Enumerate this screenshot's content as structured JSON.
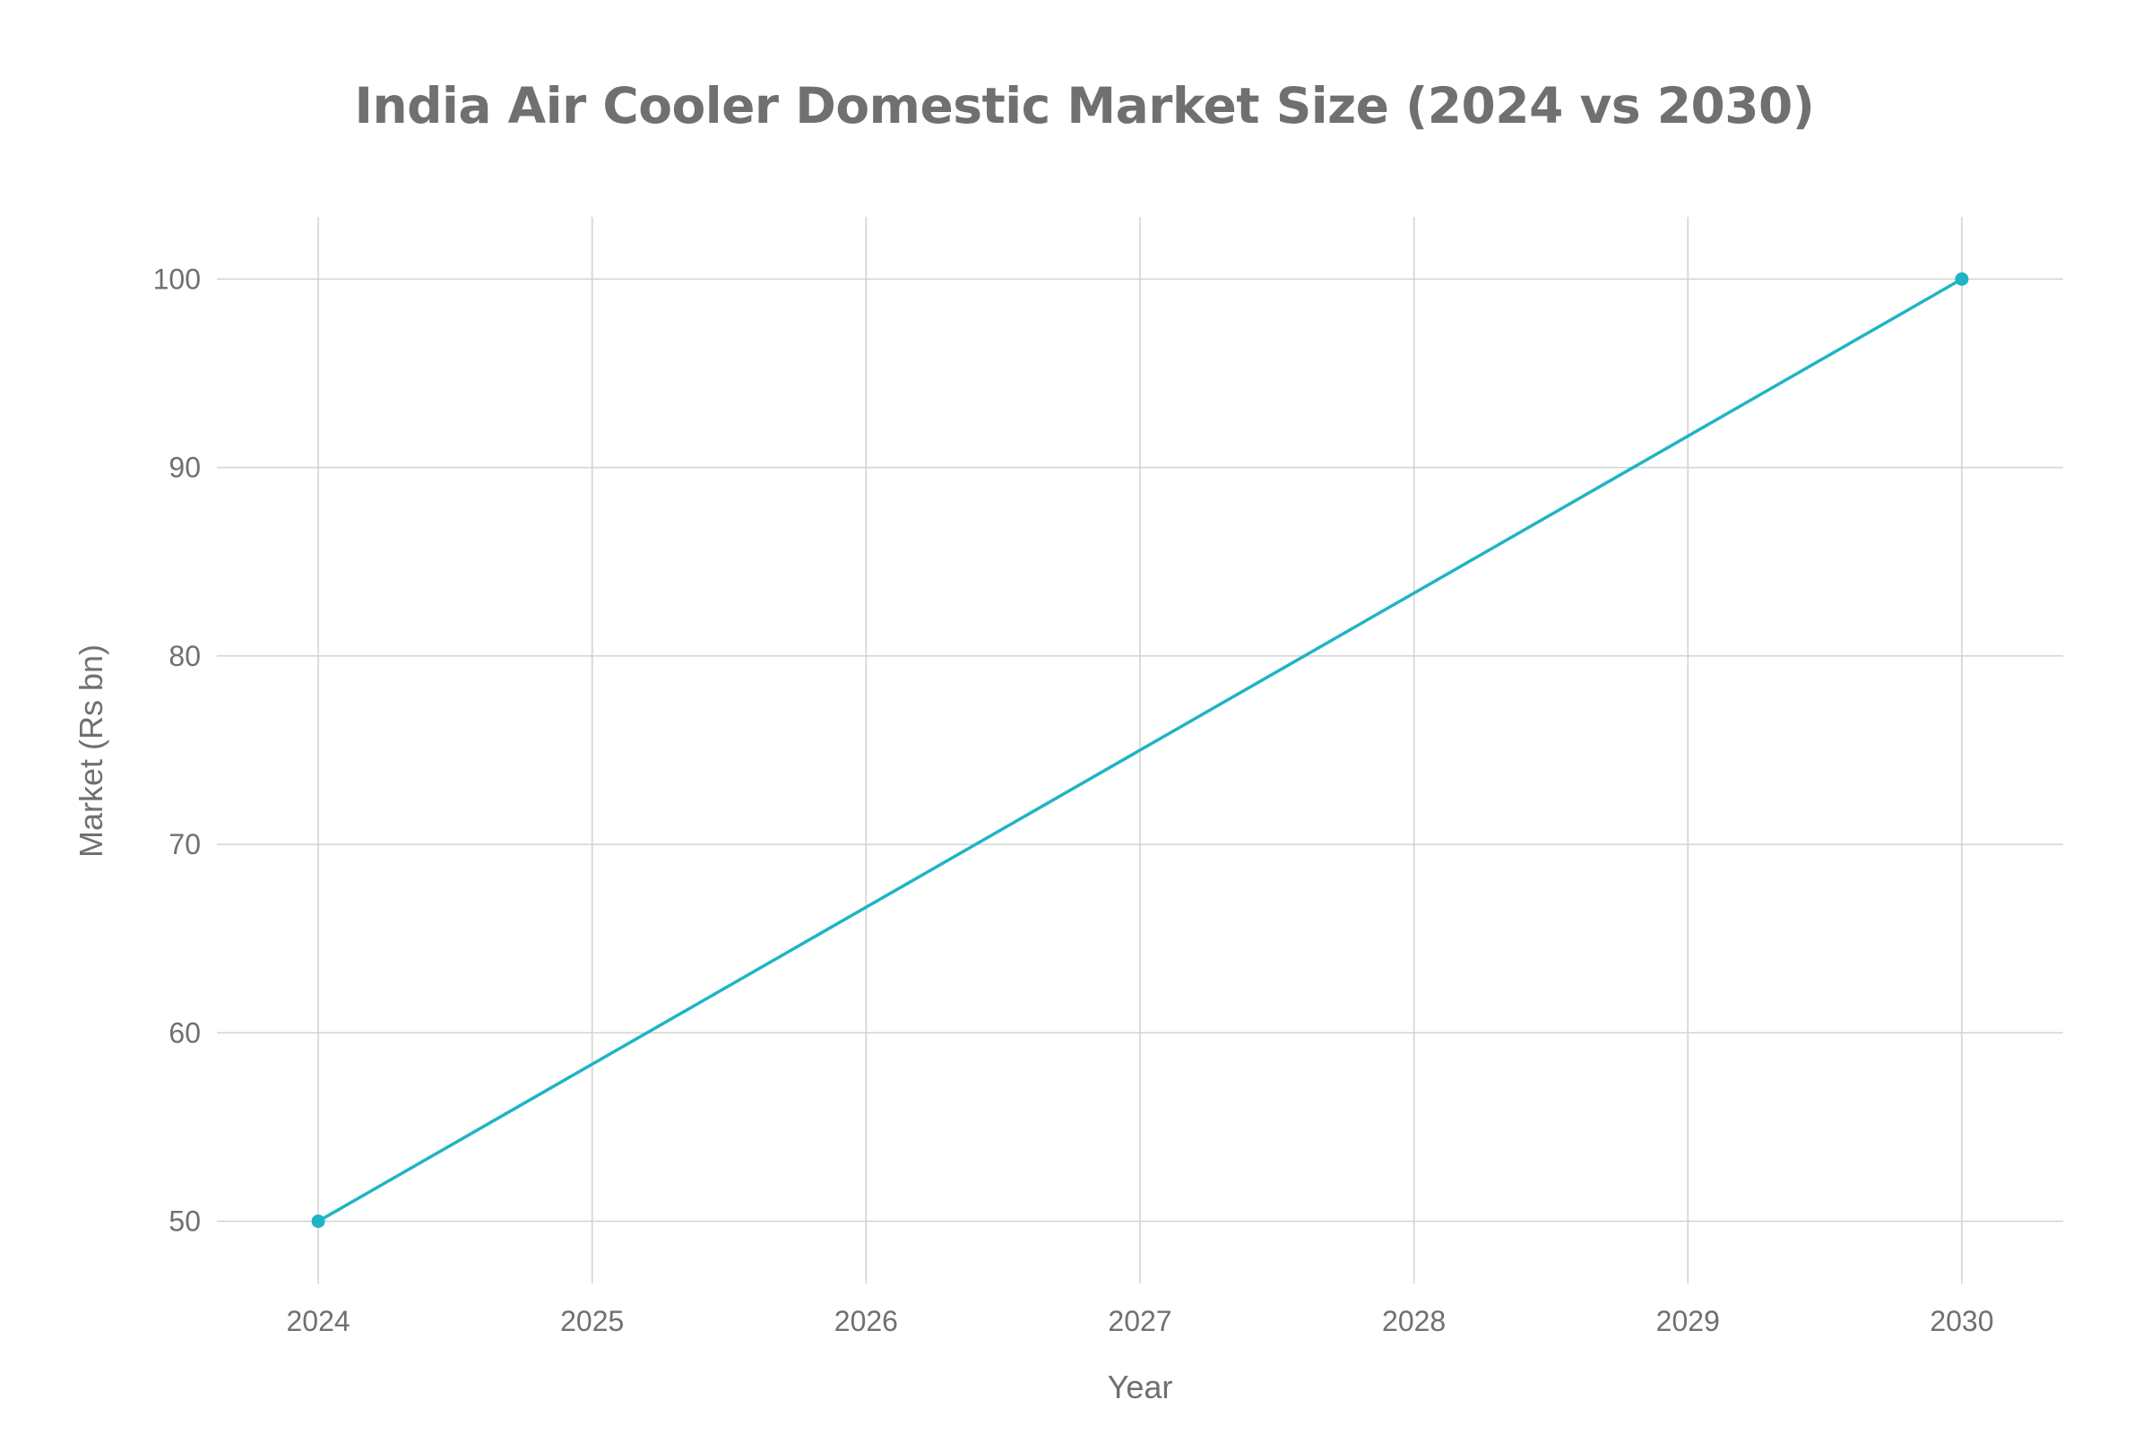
{
  "chart_data": {
    "type": "line",
    "title": "India Air Cooler Domestic Market Size (2024 vs 2030)",
    "xlabel": "Year",
    "ylabel": "Market (Rs bn)",
    "x_ticks": [
      "2024",
      "2025",
      "2026",
      "2027",
      "2028",
      "2029",
      "2030"
    ],
    "y_ticks": [
      "50",
      "60",
      "70",
      "80",
      "90",
      "100"
    ],
    "xlim": [
      2023.63,
      2030.37
    ],
    "ylim": [
      46.7,
      103.3
    ],
    "grid": true,
    "series": [
      {
        "x": [
          2024,
          2030
        ],
        "values": [
          50,
          100
        ],
        "color": "#1fb4c4"
      }
    ]
  }
}
